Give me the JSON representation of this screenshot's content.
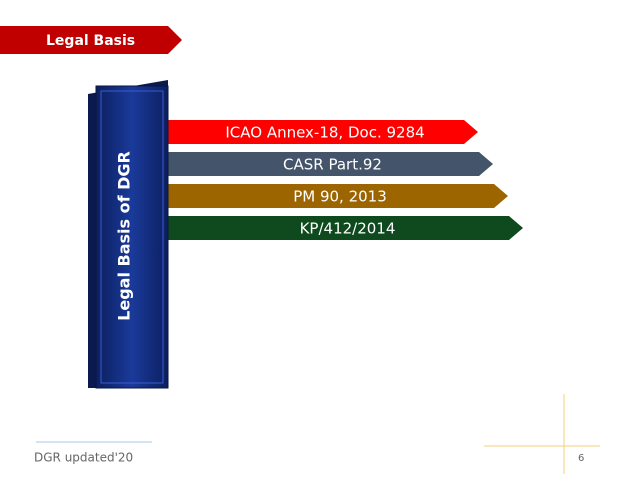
{
  "header": {
    "title": "Legal Basis"
  },
  "pillar": {
    "label": "Legal Basis of DGR"
  },
  "arrows": [
    {
      "label": "ICAO Annex-18, Doc. 9284",
      "color": "#ff0000"
    },
    {
      "label": "CASR Part.92",
      "color": "#44546a"
    },
    {
      "label": "PM 90, 2013",
      "color": "#9c6500"
    },
    {
      "label": "KP/412/2014",
      "color": "#0e4a1e"
    }
  ],
  "footer": {
    "text": "DGR updated'20",
    "page": "6"
  }
}
